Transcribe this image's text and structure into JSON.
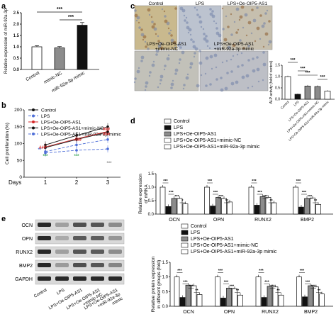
{
  "panel_letters": [
    "a",
    "b",
    "c",
    "d",
    "e"
  ],
  "colors": {
    "black": "#111111",
    "gray": "#8c8c8c",
    "white": "#ffffff",
    "red": "#d62728",
    "blue": "#4f6fd8",
    "green": "#2e9e4a",
    "ihc_bg": "#cfc4a4"
  },
  "chart_data": [
    {
      "panel": "a",
      "type": "bar",
      "ylabel": "Relative expression of miR-92a-3p",
      "ylim": [
        0,
        2.5
      ],
      "yticks": [
        "0.0",
        "0.5",
        "1.0",
        "1.5",
        "2.0",
        "2.5"
      ],
      "categories": [
        "Control",
        "mimic-NC",
        "miR-92a-3p mimic"
      ],
      "values": [
        1.0,
        0.95,
        1.95
      ],
      "errors": [
        0.05,
        0.06,
        0.12
      ],
      "bar_colors": [
        "white",
        "gray",
        "black"
      ],
      "significance": [
        "***",
        "***"
      ]
    },
    {
      "panel": "b",
      "type": "line",
      "ylabel": "Cell proliferation (%)",
      "xlabel": "Days",
      "x": [
        "1",
        "2",
        "3"
      ],
      "ylim": [
        0,
        200
      ],
      "yticks": [
        "0",
        "50",
        "100",
        "150",
        "200"
      ],
      "series": [
        {
          "name": "Control",
          "values": [
            96,
            124,
            150
          ],
          "color": "black",
          "dash": ""
        },
        {
          "name": "LPS",
          "values": [
            72,
            80,
            84
          ],
          "color": "blue",
          "dash": "4,2"
        },
        {
          "name": "LPS+Oe-OIP5-AS1",
          "values": [
            90,
            114,
            136
          ],
          "color": "red",
          "dash": ""
        },
        {
          "name": "LPS+Oe-OIP5-AS1+mimic-NC",
          "values": [
            88,
            112,
            134
          ],
          "color": "black",
          "dash": ""
        },
        {
          "name": "LPS+Oe-OIP5-AS1+miR-92a-3p mimic",
          "values": [
            76,
            96,
            112
          ],
          "color": "blue",
          "dash": "4,2"
        }
      ],
      "annotations": [
        "###",
        "###",
        "###",
        "***",
        "***",
        "***",
        "**",
        "###"
      ]
    },
    {
      "panel": "c",
      "type": "bar",
      "ylabel": "ALP activity (fold of control)",
      "ylim": [
        0,
        1.5
      ],
      "yticks": [
        "0.0",
        "0.5",
        "1.0",
        "1.5"
      ],
      "categories": [
        "Control",
        "LPS",
        "LPS+Oe-OIP5-AS1",
        "LPS+Oe-OIP5-AS1+mimic-NC",
        "LPS+Oe-OIP5-AS1+miR-92a-3p mimic"
      ],
      "values": [
        1.0,
        0.22,
        0.58,
        0.56,
        0.36
      ],
      "errors": [
        0.04,
        0.03,
        0.05,
        0.05,
        0.04
      ],
      "bar_colors": [
        "white",
        "black",
        "gray",
        "gray",
        "white"
      ],
      "significance": [
        "***",
        "***",
        "***",
        "***"
      ]
    },
    {
      "panel": "d",
      "type": "bar",
      "ylabel": "Relative expression of mRNA",
      "ylim": [
        0,
        1.5
      ],
      "yticks": [
        "0.0",
        "0.5",
        "1.0",
        "1.5"
      ],
      "categories": [
        "OCN",
        "OPN",
        "RUNX2",
        "BMP2"
      ],
      "legend": [
        "Control",
        "LPS",
        "LPS+Oe-OIP5-AS1",
        "LPS+Oe-OIP5-AS1+mimic-NC",
        "LPS+Oe-OIP5-AS1+miR-92a-3p mimic"
      ],
      "series_colors": [
        "white",
        "black",
        "gray",
        "white",
        "white"
      ],
      "series": [
        {
          "name": "Control",
          "values": [
            1.0,
            1.0,
            1.0,
            1.0
          ]
        },
        {
          "name": "LPS",
          "values": [
            0.28,
            0.3,
            0.33,
            0.26
          ]
        },
        {
          "name": "LPS+Oe-OIP5-AS1",
          "values": [
            0.58,
            0.62,
            0.65,
            0.58
          ]
        },
        {
          "name": "LPS+Oe-OIP5-AS1+mimic-NC",
          "values": [
            0.58,
            0.58,
            0.62,
            0.6
          ]
        },
        {
          "name": "LPS+Oe-OIP5-AS1+miR-92a-3p mimic",
          "values": [
            0.38,
            0.45,
            0.42,
            0.36
          ]
        }
      ],
      "significance": [
        "***",
        "***",
        "***",
        "*",
        "***",
        "***",
        "***",
        "**",
        "***",
        "***",
        "***",
        "**",
        "***",
        "***",
        "***",
        "**"
      ]
    },
    {
      "panel": "e",
      "type": "bar",
      "ylabel": "Relative protein expression in different groups (fold)",
      "ylim": [
        0,
        1.5
      ],
      "yticks": [
        "0.0",
        "0.5",
        "1.0",
        "1.5"
      ],
      "categories": [
        "OCN",
        "OPN",
        "RUNX2",
        "BMP2"
      ],
      "legend": [
        "Control",
        "LPS",
        "LPS+Oe-OIP5-AS1",
        "LPS+Oe-OIP5-AS1+mimic-NC",
        "LPS+Oe-OIP5-AS1+miR-92a-3p mimic"
      ],
      "series_colors": [
        "white",
        "black",
        "gray",
        "white",
        "white"
      ],
      "series": [
        {
          "name": "Control",
          "values": [
            1.0,
            1.0,
            1.0,
            1.0
          ]
        },
        {
          "name": "LPS",
          "values": [
            0.3,
            0.28,
            0.3,
            0.32
          ]
        },
        {
          "name": "LPS+Oe-OIP5-AS1",
          "values": [
            0.72,
            0.62,
            0.68,
            0.7
          ]
        },
        {
          "name": "LPS+Oe-OIP5-AS1+mimic-NC",
          "values": [
            0.7,
            0.6,
            0.66,
            0.66
          ]
        },
        {
          "name": "LPS+Oe-OIP5-AS1+miR-92a-3p mimic",
          "values": [
            0.4,
            0.38,
            0.38,
            0.42
          ]
        }
      ],
      "significance": [
        "***",
        "***",
        "***",
        "**",
        "***",
        "***",
        "***",
        "**",
        "***",
        "***",
        "***",
        "**",
        "***",
        "***",
        "***",
        "**"
      ]
    }
  ],
  "ihc": {
    "labels": [
      "Control",
      "LPS",
      "LPS+Oe-OIP5-AS1",
      "LPS+Oe-OIP5-AS1 +mimic-NC",
      "LPS+Oe-OIP5-AS1 +miR-92a-3p mimic"
    ]
  },
  "western": {
    "rows": [
      "OCN",
      "OPN",
      "RUNX2",
      "BMP2",
      "GAPDH"
    ],
    "lanes": [
      "Control",
      "LPS",
      "LPS+Oe-OIP5-AS1",
      "LPS+Oe-OIP5-AS1 +mimic-NC",
      "LPS+Oe-OIP5-AS1 +miR-92a-3p mimic"
    ],
    "intensity": [
      [
        0.95,
        0.35,
        0.75,
        0.72,
        0.45
      ],
      [
        0.95,
        0.3,
        0.7,
        0.68,
        0.4
      ],
      [
        0.95,
        0.35,
        0.72,
        0.7,
        0.45
      ],
      [
        0.95,
        0.38,
        0.75,
        0.72,
        0.48
      ],
      [
        0.95,
        0.95,
        0.95,
        0.95,
        0.95
      ]
    ]
  }
}
